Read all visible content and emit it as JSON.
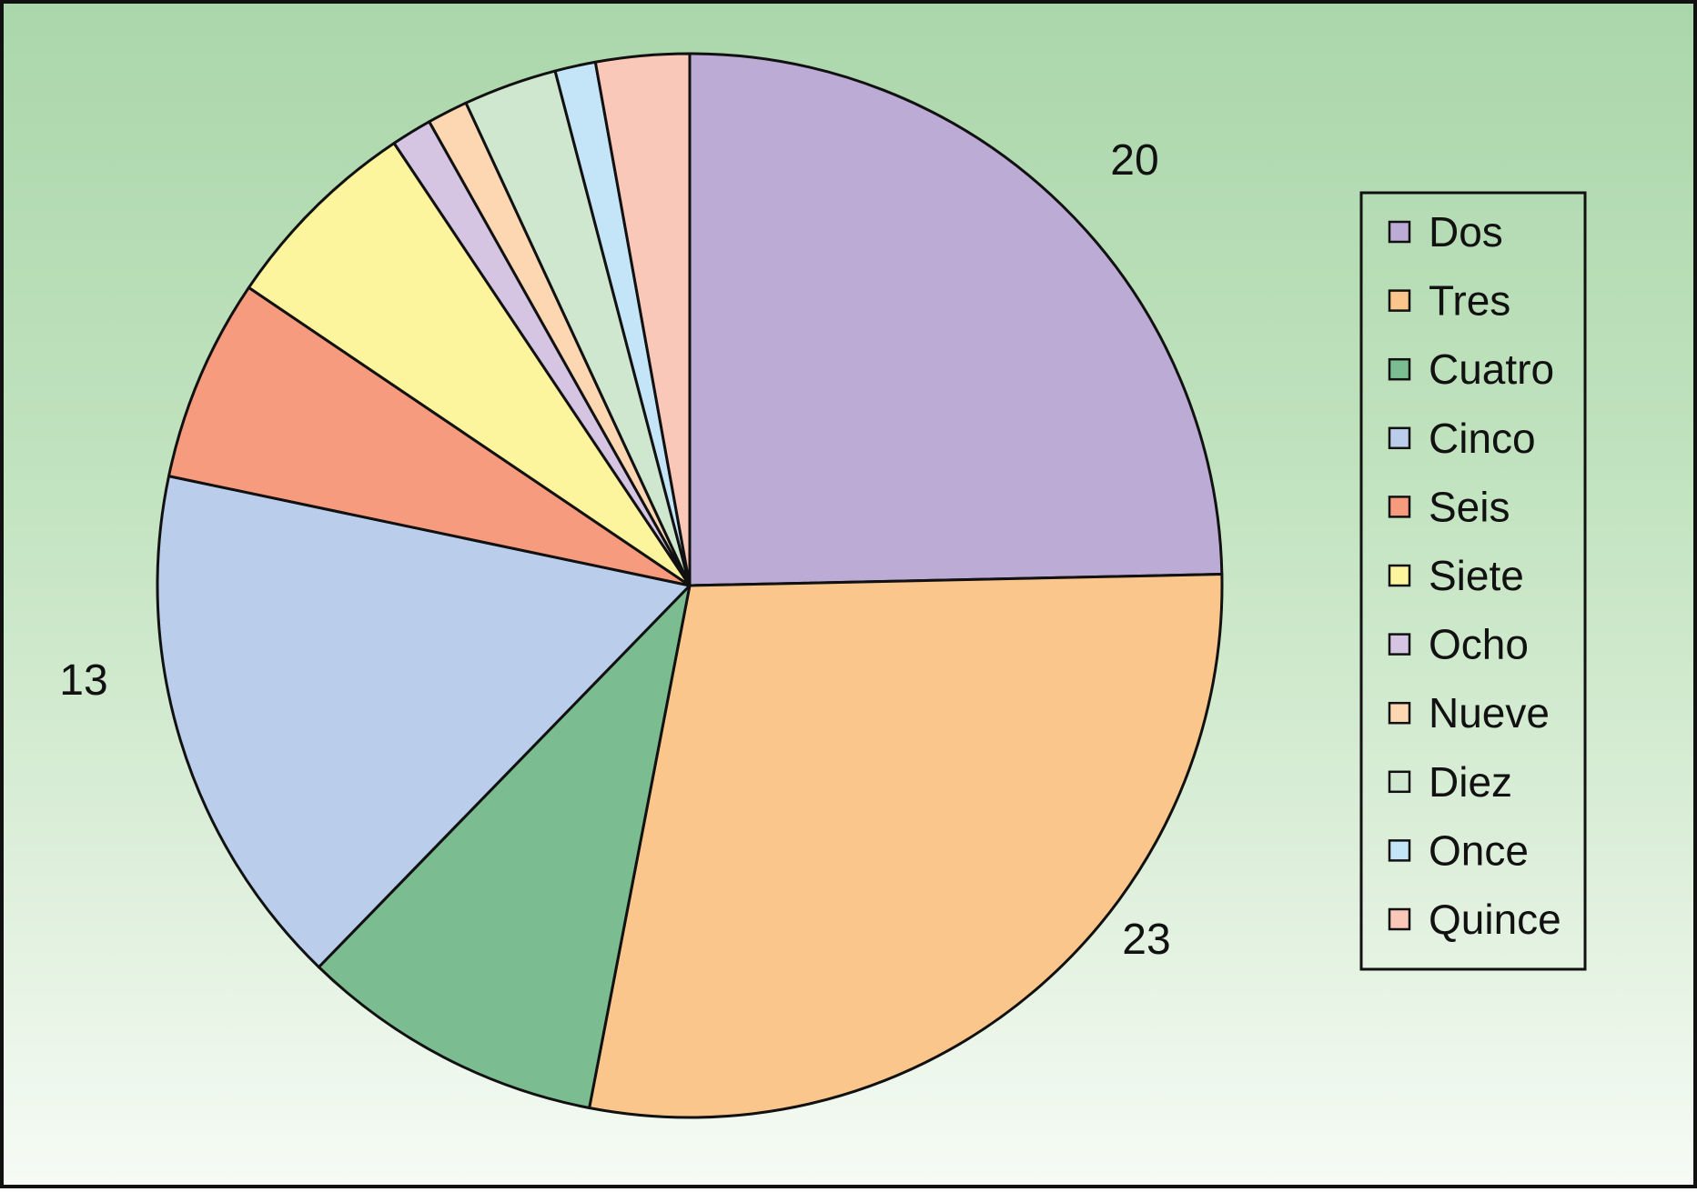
{
  "chart_data": {
    "type": "pie",
    "title": "",
    "slices": [
      {
        "label": "Dos",
        "value": 20,
        "color": "#bcabd4"
      },
      {
        "label": "Tres",
        "value": 23,
        "color": "#fbc68c"
      },
      {
        "label": "Cuatro",
        "value": 7.5,
        "color": "#7bbd90"
      },
      {
        "label": "Cinco",
        "value": 13,
        "color": "#bacdea"
      },
      {
        "label": "Seis",
        "value": 5,
        "color": "#f69b7d"
      },
      {
        "label": "Siete",
        "value": 5,
        "color": "#fdf59e"
      },
      {
        "label": "Ocho",
        "value": 1,
        "color": "#d5c5e3"
      },
      {
        "label": "Nueve",
        "value": 1,
        "color": "#fcd7b2"
      },
      {
        "label": "Diez",
        "value": 2.3,
        "color": "#cfe6cf"
      },
      {
        "label": "Once",
        "value": 1,
        "color": "#c4e5f8"
      },
      {
        "label": "Quince",
        "value": 2.3,
        "color": "#fac8b8"
      }
    ],
    "data_labels": [
      {
        "series": "Dos",
        "text": "20"
      },
      {
        "series": "Tres",
        "text": "23"
      },
      {
        "series": "Cinco",
        "text": "13"
      }
    ],
    "legend": {
      "position": "right",
      "bordered": true
    },
    "start_angle_deg": 0,
    "direction": "clockwise"
  }
}
